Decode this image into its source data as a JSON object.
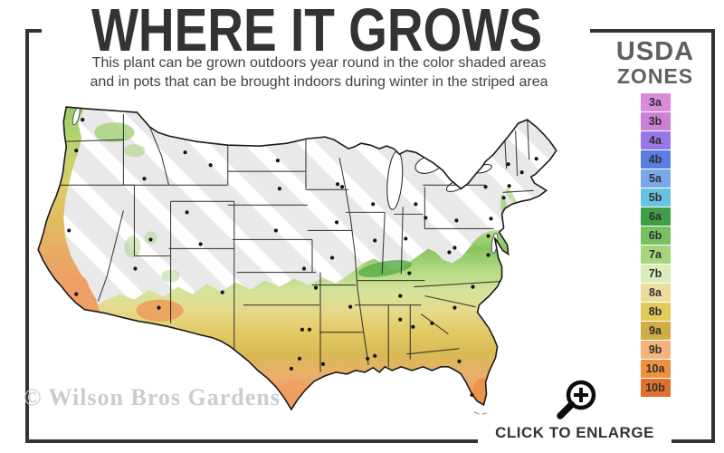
{
  "header": {
    "title": "WHERE IT GROWS",
    "subtitle_line1": "This plant can be grown outdoors year round in the color shaded areas",
    "subtitle_line2": "and in pots that can be brought indoors during winter in the striped area"
  },
  "legend": {
    "title_line1": "USDA",
    "title_line2": "ZONES",
    "zones": [
      {
        "label": "3a",
        "color": "#d98ad9"
      },
      {
        "label": "3b",
        "color": "#cb82d4"
      },
      {
        "label": "4a",
        "color": "#9678e8"
      },
      {
        "label": "4b",
        "color": "#5a7de2"
      },
      {
        "label": "5a",
        "color": "#79a7e8"
      },
      {
        "label": "5b",
        "color": "#68c3e0"
      },
      {
        "label": "6a",
        "color": "#3f9f47"
      },
      {
        "label": "6b",
        "color": "#77c161"
      },
      {
        "label": "7a",
        "color": "#a7d57b"
      },
      {
        "label": "7b",
        "color": "#dcedbc"
      },
      {
        "label": "8a",
        "color": "#eedc9d"
      },
      {
        "label": "8b",
        "color": "#e3ca5d"
      },
      {
        "label": "9a",
        "color": "#cfae48"
      },
      {
        "label": "9b",
        "color": "#f3b47b"
      },
      {
        "label": "10a",
        "color": "#ee9140"
      },
      {
        "label": "10b",
        "color": "#df722c"
      }
    ]
  },
  "watermark": {
    "text": "© Wilson Bros Gardens"
  },
  "enlarge": {
    "label": "CLICK TO ENLARGE",
    "icon": "magnifier-plus-icon"
  },
  "frame_color": "#333333",
  "map": {
    "colors": {
      "striped_base": "#e9e9e9",
      "stripe": "#ffffff",
      "state_border": "#222222",
      "outline": "#1a1a1a",
      "city_dot": "#151515"
    },
    "city_dots": [
      [
        55,
        28
      ],
      [
        48,
        62
      ],
      [
        123,
        93
      ],
      [
        168,
        64
      ],
      [
        196,
        78
      ],
      [
        270,
        73
      ],
      [
        272,
        104
      ],
      [
        170,
        130
      ],
      [
        130,
        160
      ],
      [
        113,
        192
      ],
      [
        185,
        165
      ],
      [
        268,
        150
      ],
      [
        299,
        192
      ],
      [
        139,
        235
      ],
      [
        209,
        218
      ],
      [
        312,
        213
      ],
      [
        40,
        150
      ],
      [
        48,
        220
      ],
      [
        297,
        259
      ],
      [
        305,
        259
      ],
      [
        294,
        291
      ],
      [
        285,
        302
      ],
      [
        320,
        297
      ],
      [
        350,
        234
      ],
      [
        369,
        291
      ],
      [
        377,
        288
      ],
      [
        336,
        99
      ],
      [
        341,
        102
      ],
      [
        335,
        141
      ],
      [
        330,
        180
      ],
      [
        377,
        161
      ],
      [
        411,
        159
      ],
      [
        375,
        121
      ],
      [
        422,
        121
      ],
      [
        433,
        136
      ],
      [
        459,
        174
      ],
      [
        467,
        139
      ],
      [
        499,
        102
      ],
      [
        524,
        77
      ],
      [
        539,
        86
      ],
      [
        555,
        71
      ],
      [
        525,
        101
      ],
      [
        519,
        114
      ],
      [
        505,
        137
      ],
      [
        502,
        156
      ],
      [
        465,
        169
      ],
      [
        502,
        177
      ],
      [
        415,
        197
      ],
      [
        405,
        222
      ],
      [
        405,
        248
      ],
      [
        419,
        256
      ],
      [
        440,
        252
      ],
      [
        465,
        235
      ],
      [
        485,
        212
      ],
      [
        470,
        294
      ],
      [
        484,
        331
      ]
    ]
  }
}
